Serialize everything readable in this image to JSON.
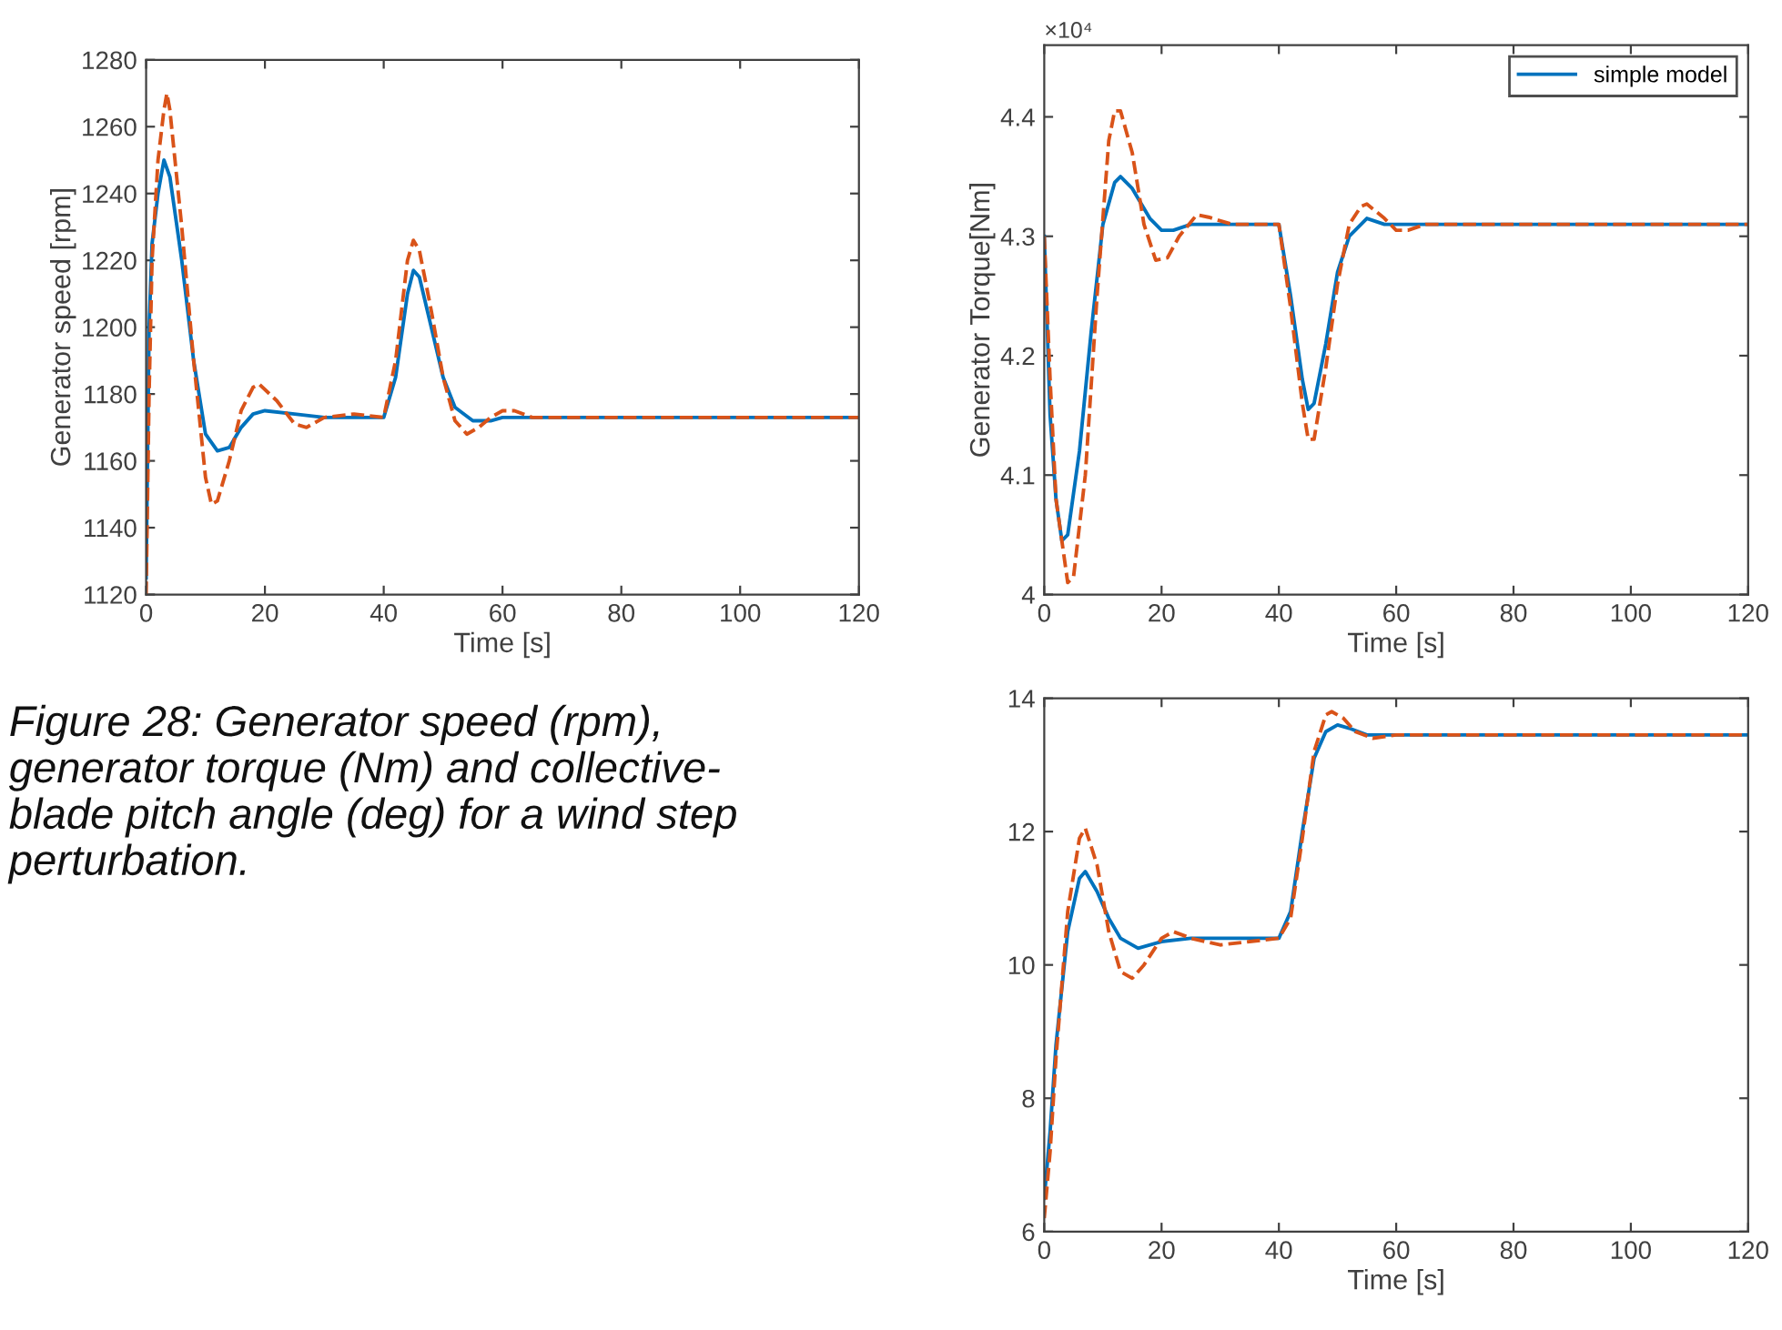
{
  "chart_data": [
    {
      "type": "line",
      "xlabel": "Time [s]",
      "ylabel": "Generator speed [rpm]",
      "xlim": [
        0,
        120
      ],
      "ylim": [
        1120,
        1280
      ],
      "xticks": [
        0,
        20,
        40,
        60,
        80,
        100,
        120
      ],
      "yticks": [
        1120,
        1140,
        1160,
        1180,
        1200,
        1220,
        1240,
        1260,
        1280
      ],
      "grid": false,
      "legend": false,
      "annotations": [
        "Figure 28: Generator speed (rpm),\ngenerator torque (Nm) and collective-\nblade pitch angle (deg) for a wind step\nperturbation."
      ],
      "series": [
        {
          "color": "#0072bd",
          "line_style": "solid",
          "x": [
            0,
            0.5,
            1,
            2,
            3,
            4,
            6,
            8,
            10,
            12,
            14,
            16,
            18,
            20,
            25,
            30,
            40,
            42,
            44,
            45,
            46,
            48,
            50,
            52,
            55,
            58,
            60,
            80,
            120
          ],
          "values": [
            1125,
            1200,
            1225,
            1240,
            1250,
            1245,
            1220,
            1190,
            1168,
            1163,
            1164,
            1170,
            1174,
            1175,
            1174,
            1173,
            1173,
            1185,
            1210,
            1217,
            1215,
            1200,
            1185,
            1176,
            1172,
            1172,
            1173,
            1173,
            1173
          ]
        },
        {
          "color": "#d95319",
          "line_style": "dashed",
          "x": [
            0,
            0.5,
            1,
            2,
            3,
            3.5,
            4,
            6,
            8,
            10,
            11,
            12,
            14,
            16,
            18,
            19,
            22,
            25,
            27,
            30,
            35,
            40,
            42,
            44,
            45,
            46,
            48,
            50,
            52,
            54,
            56,
            58,
            60,
            62,
            65,
            120
          ],
          "values": [
            1120,
            1180,
            1220,
            1250,
            1265,
            1270,
            1265,
            1230,
            1190,
            1155,
            1147,
            1148,
            1160,
            1175,
            1182,
            1183,
            1178,
            1171,
            1170,
            1173,
            1174,
            1173,
            1190,
            1220,
            1226,
            1223,
            1205,
            1185,
            1172,
            1168,
            1170,
            1173,
            1175,
            1175,
            1173,
            1173
          ]
        }
      ]
    },
    {
      "type": "line",
      "xlabel": "Time [s]",
      "ylabel": "Generator Torque[Nm]",
      "xlim": [
        0,
        120
      ],
      "ylim": [
        4,
        4.46
      ],
      "xticks": [
        0,
        20,
        40,
        60,
        80,
        100,
        120
      ],
      "yticks": [
        {
          "value": 4,
          "label": "4"
        },
        4.1,
        4.2,
        4.3,
        4.4
      ],
      "grid": false,
      "legend": "top right",
      "annotations": [
        "×10⁴"
      ],
      "series": [
        {
          "name": "simple model",
          "color": "#0072bd",
          "line_style": "solid",
          "x": [
            0,
            1,
            2,
            3,
            4,
            6,
            8,
            10,
            12,
            13,
            15,
            18,
            20,
            22,
            25,
            30,
            40,
            42,
            44,
            45,
            46,
            48,
            50,
            52,
            55,
            58,
            60,
            120
          ],
          "values": [
            4.3,
            4.15,
            4.08,
            4.045,
            4.05,
            4.12,
            4.22,
            4.31,
            4.345,
            4.35,
            4.34,
            4.315,
            4.305,
            4.305,
            4.31,
            4.31,
            4.31,
            4.25,
            4.18,
            4.155,
            4.16,
            4.21,
            4.27,
            4.3,
            4.315,
            4.31,
            4.31,
            4.31
          ]
        },
        {
          "color": "#d95319",
          "line_style": "dashed",
          "x": [
            0,
            1,
            2,
            4,
            5,
            7,
            9,
            11,
            12,
            13,
            15,
            17,
            19,
            21,
            23,
            26,
            28,
            32,
            40,
            42,
            44,
            45,
            46,
            48,
            50,
            52,
            54,
            55,
            58,
            60,
            62,
            65,
            120
          ],
          "values": [
            4.3,
            4.18,
            4.08,
            4.01,
            4.015,
            4.1,
            4.25,
            4.38,
            4.405,
            4.405,
            4.37,
            4.31,
            4.28,
            4.282,
            4.3,
            4.318,
            4.316,
            4.31,
            4.31,
            4.24,
            4.16,
            4.13,
            4.13,
            4.19,
            4.26,
            4.31,
            4.325,
            4.327,
            4.315,
            4.305,
            4.305,
            4.31,
            4.31
          ]
        }
      ]
    },
    {
      "type": "line",
      "xlabel": "Time [s]",
      "xlim": [
        0,
        120
      ],
      "ylim": [
        6,
        14
      ],
      "xticks": [
        0,
        20,
        40,
        60,
        80,
        100,
        120
      ],
      "yticks": [
        6,
        8,
        10,
        12,
        14
      ],
      "grid": false,
      "legend": false,
      "series": [
        {
          "color": "#0072bd",
          "line_style": "solid",
          "x": [
            0,
            1,
            2,
            4,
            6,
            7,
            9,
            11,
            13,
            16,
            20,
            25,
            40,
            42,
            44,
            46,
            48,
            50,
            52,
            55,
            60,
            120
          ],
          "values": [
            6.5,
            7.5,
            8.8,
            10.5,
            11.3,
            11.4,
            11.1,
            10.7,
            10.4,
            10.25,
            10.35,
            10.4,
            10.4,
            10.8,
            12.0,
            13.1,
            13.5,
            13.6,
            13.55,
            13.45,
            13.45,
            13.45
          ]
        },
        {
          "color": "#d95319",
          "line_style": "dashed",
          "x": [
            0,
            1,
            2,
            4,
            6,
            7,
            9,
            11,
            13,
            15,
            17,
            20,
            22,
            25,
            30,
            35,
            40,
            42,
            44,
            46,
            48,
            49,
            51,
            53,
            56,
            60,
            120
          ],
          "values": [
            6.2,
            7.2,
            8.6,
            10.8,
            11.9,
            12.05,
            11.5,
            10.5,
            9.9,
            9.8,
            10.0,
            10.4,
            10.5,
            10.4,
            10.3,
            10.35,
            10.4,
            10.7,
            11.9,
            13.2,
            13.75,
            13.8,
            13.7,
            13.5,
            13.4,
            13.45,
            13.45
          ]
        }
      ]
    }
  ]
}
